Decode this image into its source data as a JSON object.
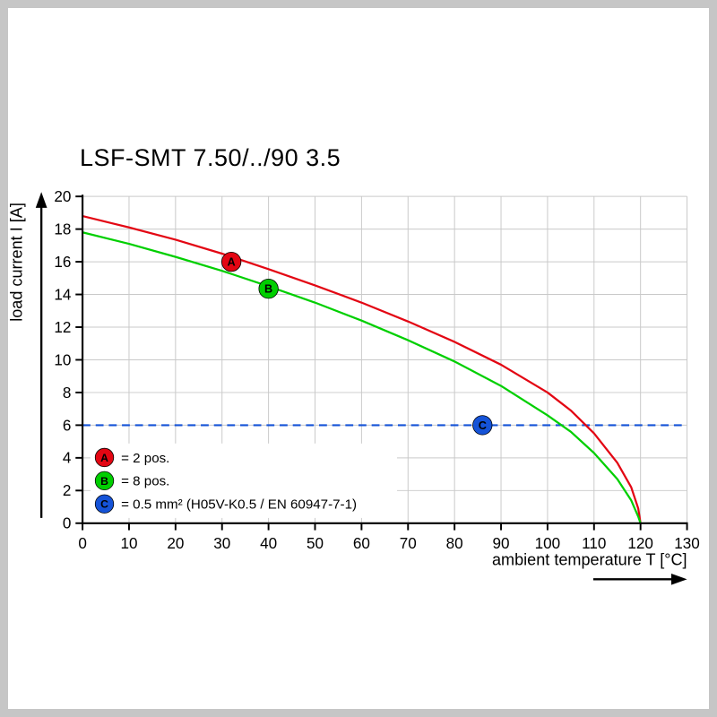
{
  "frame": {
    "border_color": "#c6c6c6",
    "background": "#ffffff"
  },
  "chart_data": {
    "type": "line",
    "title": "LSF-SMT 7.50/../90 3.5",
    "xlabel": "ambient temperature T [°C]",
    "ylabel": "load current I [A]",
    "xlim": [
      0,
      130
    ],
    "ylim": [
      0,
      20
    ],
    "x_ticks": [
      0,
      10,
      20,
      30,
      40,
      50,
      60,
      70,
      80,
      90,
      100,
      110,
      120,
      130
    ],
    "y_ticks": [
      0,
      2,
      4,
      6,
      8,
      10,
      12,
      14,
      16,
      18,
      20
    ],
    "grid": true,
    "grid_color": "#c9c9c9",
    "axis_color": "#000000",
    "series": [
      {
        "name": "A",
        "legend_text": "= 2 pos.",
        "color": "#e30613",
        "marker": {
          "label": "A",
          "x": 32,
          "y": 16.0
        },
        "points": [
          [
            0,
            18.8
          ],
          [
            10,
            18.1
          ],
          [
            20,
            17.35
          ],
          [
            30,
            16.5
          ],
          [
            40,
            15.55
          ],
          [
            50,
            14.55
          ],
          [
            60,
            13.5
          ],
          [
            70,
            12.35
          ],
          [
            80,
            11.1
          ],
          [
            90,
            9.7
          ],
          [
            100,
            8.0
          ],
          [
            105,
            6.9
          ],
          [
            110,
            5.5
          ],
          [
            115,
            3.7
          ],
          [
            118,
            2.2
          ],
          [
            119.5,
            0.9
          ],
          [
            120,
            0
          ]
        ]
      },
      {
        "name": "B",
        "legend_text": "= 8 pos.",
        "color": "#00cf00",
        "marker": {
          "label": "B",
          "x": 40,
          "y": 14.35
        },
        "points": [
          [
            0,
            17.8
          ],
          [
            10,
            17.1
          ],
          [
            20,
            16.3
          ],
          [
            30,
            15.45
          ],
          [
            40,
            14.5
          ],
          [
            50,
            13.5
          ],
          [
            60,
            12.4
          ],
          [
            70,
            11.2
          ],
          [
            80,
            9.9
          ],
          [
            90,
            8.4
          ],
          [
            100,
            6.6
          ],
          [
            105,
            5.6
          ],
          [
            110,
            4.3
          ],
          [
            115,
            2.7
          ],
          [
            118,
            1.4
          ],
          [
            119.5,
            0.4
          ],
          [
            120,
            0
          ]
        ]
      }
    ],
    "reference_line": {
      "name": "C",
      "legend_text": "= 0.5 mm² (H05V-K0.5 / EN 60947-7-1)",
      "color": "#1553d7",
      "style": "dashed",
      "y": 6,
      "marker": {
        "label": "C",
        "x": 86,
        "y": 6
      }
    },
    "legend_position": "bottom-left"
  }
}
